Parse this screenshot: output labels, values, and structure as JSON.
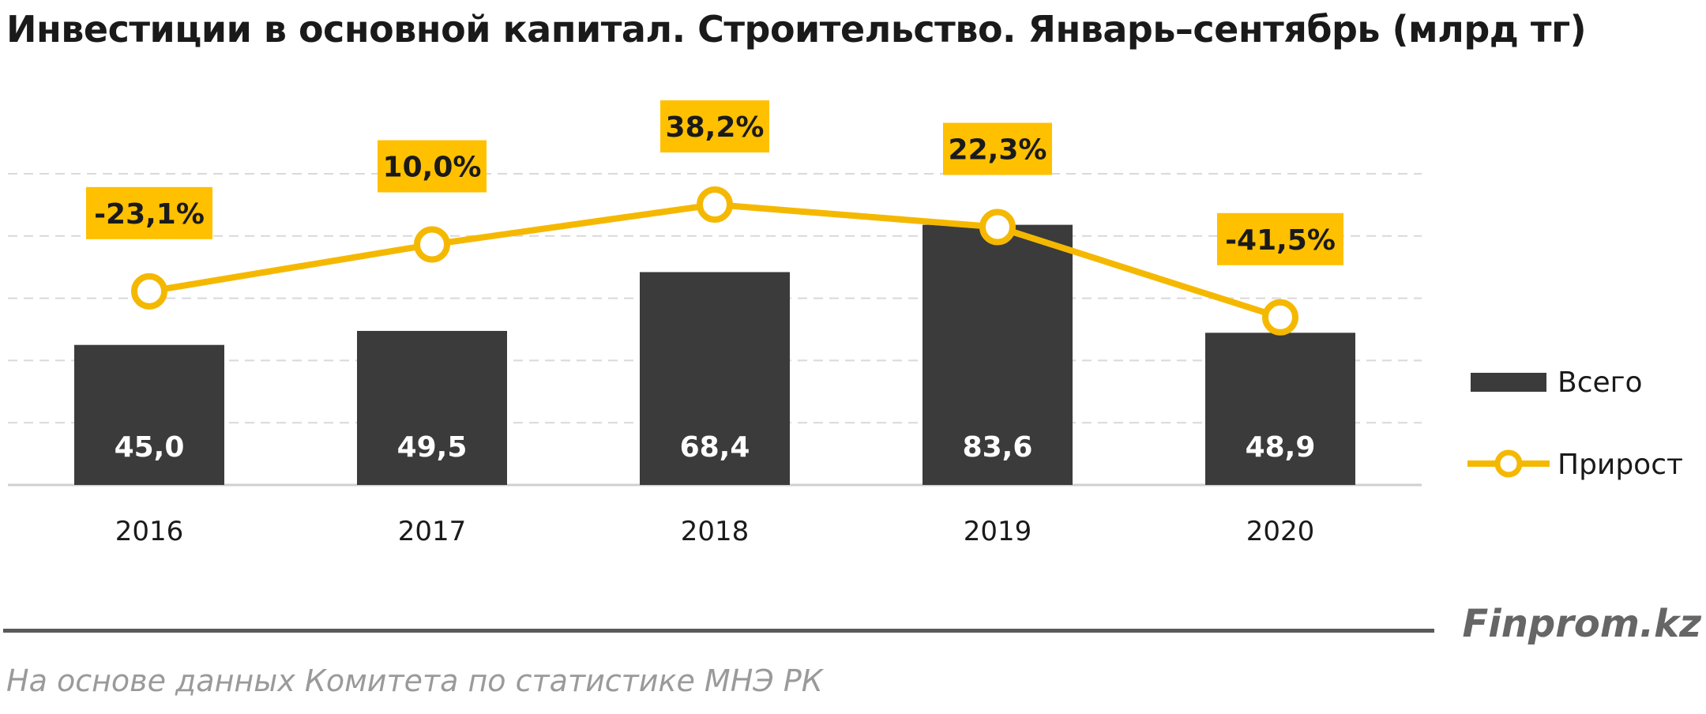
{
  "title": "Инвестиции в основной капитал. Строительство. Январь–сентябрь (млрд тг)",
  "brand": "Finprom.kz",
  "source": "На основе данных  Комитета по статистике МНЭ РК",
  "colors": {
    "bar": "#3b3b3b",
    "line": "#f5b800",
    "label_bg": "#ffc000",
    "grid": "#d9d9d9"
  },
  "chart_data": {
    "type": "bar",
    "categories": [
      "2016",
      "2017",
      "2018",
      "2019",
      "2020"
    ],
    "series": [
      {
        "name": "Всего",
        "type": "bar",
        "values": [
          45.0,
          49.5,
          68.4,
          83.6,
          48.9
        ],
        "labels": [
          "45,0",
          "49,5",
          "68,4",
          "83,6",
          "48,9"
        ]
      },
      {
        "name": "Прирост",
        "type": "line",
        "values": [
          -23.1,
          10.0,
          38.2,
          22.3,
          -41.5
        ],
        "labels": [
          "-23,1%",
          "10,0%",
          "38,2%",
          "22,3%",
          "-41,5%"
        ]
      }
    ],
    "ylim": [
      0,
      100
    ],
    "y2lim": [
      -160,
      60
    ],
    "grid": true,
    "legend": "right"
  }
}
